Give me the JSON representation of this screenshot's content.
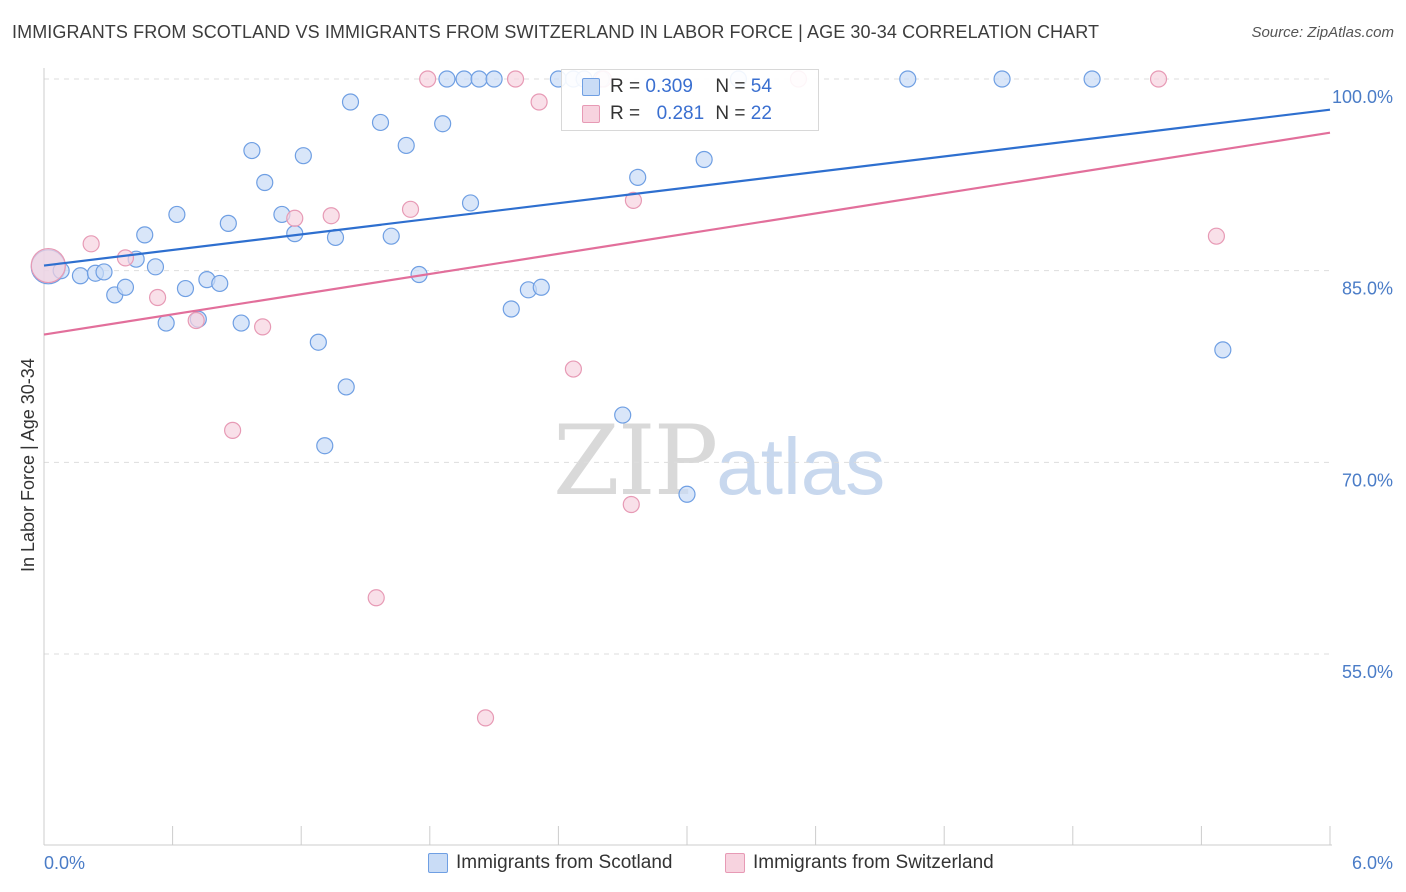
{
  "title": "IMMIGRANTS FROM SCOTLAND VS IMMIGRANTS FROM SWITZERLAND IN LABOR FORCE | AGE 30-34 CORRELATION CHART",
  "source": "Source: ZipAtlas.com",
  "watermark": {
    "zip": "ZIP",
    "atlas": "atlas"
  },
  "colors": {
    "blue": "#6f9fe3",
    "blue_fill": "#c9dcf6",
    "pink": "#e79ab5",
    "pink_fill": "#f7d3df",
    "blue_line": "#2e6fcf",
    "pink_line": "#e26f9b",
    "tick": "#4a7cc7",
    "grid": "#dddddd"
  },
  "legend": {
    "rows": [
      {
        "r_label": "R =",
        "r_value": "0.309",
        "n_label": "N =",
        "n_value": "54"
      },
      {
        "r_label": "R =",
        "r_value": "0.281",
        "n_label": "N =",
        "n_value": "22"
      }
    ]
  },
  "bottom_legend": [
    "Immigrants from Scotland",
    "Immigrants from Switzerland"
  ],
  "chart_data": {
    "type": "scatter",
    "title": "IMMIGRANTS FROM SCOTLAND VS IMMIGRANTS FROM SWITZERLAND IN LABOR FORCE | AGE 30-34 CORRELATION CHART",
    "xlabel": "",
    "ylabel": "In Labor Force | Age 30-34",
    "xlim": [
      0.0,
      6.0
    ],
    "ylim": [
      40.0,
      102.0
    ],
    "x_tick_labels": [
      "0.0%",
      "6.0%"
    ],
    "y_ticks": [
      55.0,
      70.0,
      85.0,
      100.0
    ],
    "y_tick_labels": [
      "55.0%",
      "70.0%",
      "85.0%",
      "100.0%"
    ],
    "series": [
      {
        "name": "Immigrants from Scotland",
        "R": 0.309,
        "N": 54,
        "trend": {
          "x": [
            0.0,
            6.0
          ],
          "y": [
            85.4,
            97.6
          ]
        },
        "points": [
          {
            "x": 0.02,
            "y": 85.3,
            "big": true
          },
          {
            "x": 0.08,
            "y": 85.0
          },
          {
            "x": 0.17,
            "y": 84.6
          },
          {
            "x": 0.24,
            "y": 84.8
          },
          {
            "x": 0.28,
            "y": 84.9
          },
          {
            "x": 0.33,
            "y": 83.1
          },
          {
            "x": 0.38,
            "y": 83.7
          },
          {
            "x": 0.43,
            "y": 85.9
          },
          {
            "x": 0.47,
            "y": 87.8
          },
          {
            "x": 0.52,
            "y": 85.3
          },
          {
            "x": 0.57,
            "y": 80.9
          },
          {
            "x": 0.62,
            "y": 89.4
          },
          {
            "x": 0.66,
            "y": 83.6
          },
          {
            "x": 0.72,
            "y": 81.2
          },
          {
            "x": 0.76,
            "y": 84.3
          },
          {
            "x": 0.82,
            "y": 84.0
          },
          {
            "x": 0.86,
            "y": 88.7
          },
          {
            "x": 0.92,
            "y": 80.9
          },
          {
            "x": 0.97,
            "y": 94.4
          },
          {
            "x": 1.03,
            "y": 91.9
          },
          {
            "x": 1.11,
            "y": 89.4
          },
          {
            "x": 1.17,
            "y": 87.9
          },
          {
            "x": 1.21,
            "y": 94.0
          },
          {
            "x": 1.28,
            "y": 79.4
          },
          {
            "x": 1.31,
            "y": 71.3
          },
          {
            "x": 1.36,
            "y": 87.6
          },
          {
            "x": 1.41,
            "y": 75.9
          },
          {
            "x": 1.43,
            "y": 98.2
          },
          {
            "x": 1.57,
            "y": 96.6
          },
          {
            "x": 1.62,
            "y": 87.7
          },
          {
            "x": 1.69,
            "y": 94.8
          },
          {
            "x": 1.75,
            "y": 84.7
          },
          {
            "x": 1.86,
            "y": 96.5
          },
          {
            "x": 1.88,
            "y": 100.0
          },
          {
            "x": 1.96,
            "y": 100.0
          },
          {
            "x": 1.99,
            "y": 90.3
          },
          {
            "x": 2.03,
            "y": 100.0
          },
          {
            "x": 2.1,
            "y": 100.0
          },
          {
            "x": 2.18,
            "y": 82.0
          },
          {
            "x": 2.26,
            "y": 83.5
          },
          {
            "x": 2.32,
            "y": 83.7
          },
          {
            "x": 2.4,
            "y": 100.0
          },
          {
            "x": 2.47,
            "y": 100.0
          },
          {
            "x": 2.52,
            "y": 100.0
          },
          {
            "x": 2.6,
            "y": 100.0
          },
          {
            "x": 2.7,
            "y": 73.7
          },
          {
            "x": 2.77,
            "y": 92.3
          },
          {
            "x": 3.0,
            "y": 67.5
          },
          {
            "x": 3.08,
            "y": 93.7
          },
          {
            "x": 3.24,
            "y": 100.0
          },
          {
            "x": 4.03,
            "y": 100.0
          },
          {
            "x": 4.47,
            "y": 100.0
          },
          {
            "x": 4.89,
            "y": 100.0
          },
          {
            "x": 5.5,
            "y": 78.8
          }
        ]
      },
      {
        "name": "Immigrants from Switzerland",
        "R": 0.281,
        "N": 22,
        "trend": {
          "x": [
            0.0,
            6.0
          ],
          "y": [
            80.0,
            95.8
          ]
        },
        "points": [
          {
            "x": 0.02,
            "y": 85.4,
            "big": true
          },
          {
            "x": 0.22,
            "y": 87.1
          },
          {
            "x": 0.38,
            "y": 86.0
          },
          {
            "x": 0.53,
            "y": 82.9
          },
          {
            "x": 0.71,
            "y": 81.1
          },
          {
            "x": 0.88,
            "y": 72.5
          },
          {
            "x": 1.02,
            "y": 80.6
          },
          {
            "x": 1.17,
            "y": 89.1
          },
          {
            "x": 1.34,
            "y": 89.3
          },
          {
            "x": 1.55,
            "y": 59.4
          },
          {
            "x": 1.71,
            "y": 89.8
          },
          {
            "x": 1.79,
            "y": 100.0
          },
          {
            "x": 2.06,
            "y": 50.0
          },
          {
            "x": 2.2,
            "y": 100.0
          },
          {
            "x": 2.31,
            "y": 98.2
          },
          {
            "x": 2.47,
            "y": 77.3
          },
          {
            "x": 2.61,
            "y": 100.0
          },
          {
            "x": 2.75,
            "y": 90.5
          },
          {
            "x": 2.74,
            "y": 66.7
          },
          {
            "x": 3.52,
            "y": 100.0
          },
          {
            "x": 5.2,
            "y": 100.0
          },
          {
            "x": 5.47,
            "y": 87.7
          }
        ]
      }
    ]
  }
}
